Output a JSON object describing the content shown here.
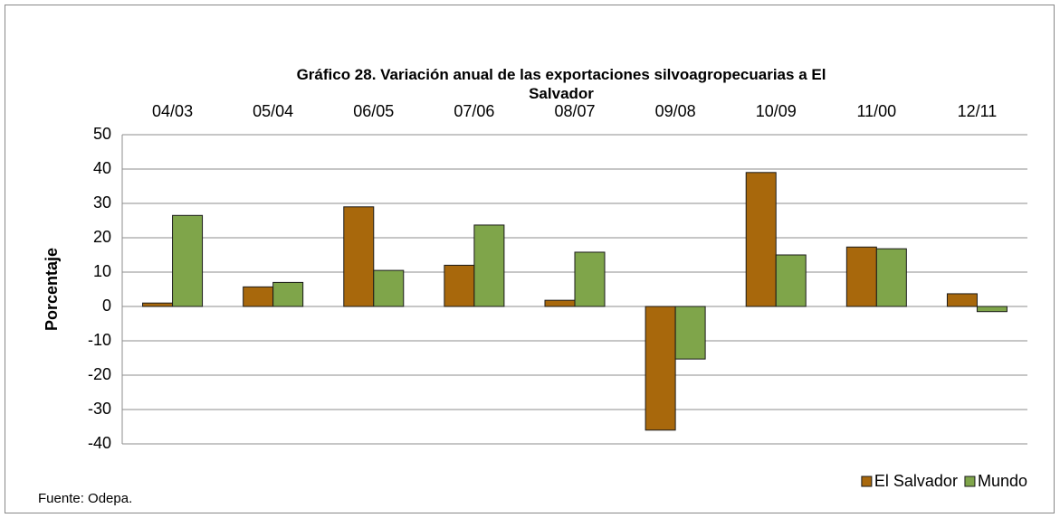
{
  "chart_data": {
    "type": "bar",
    "title": "Gráfico 28. Variación anual de las exportaciones silvoagropecuarias a El Salvador",
    "y_label": "Porcentaje",
    "source": "Fuente: Odepa.",
    "categories": [
      "04/03",
      "05/04",
      "06/05",
      "07/06",
      "08/07",
      "09/08",
      "10/09",
      "11/00",
      "12/11"
    ],
    "series": [
      {
        "name": "El Salvador",
        "color": "#a8680c",
        "values": [
          1,
          5.7,
          29,
          12,
          1.8,
          -36,
          39,
          17.3,
          3.7
        ]
      },
      {
        "name": "Mundo",
        "color": "#7fa54a",
        "values": [
          26.5,
          7,
          10.5,
          23.7,
          15.8,
          -15.3,
          15,
          16.8,
          -1.5
        ]
      }
    ],
    "ylim": [
      -40,
      50
    ],
    "yticks": [
      50,
      40,
      30,
      20,
      10,
      0,
      -10,
      -20,
      -30,
      -40
    ],
    "grid": true,
    "legend": "bottom-right"
  }
}
